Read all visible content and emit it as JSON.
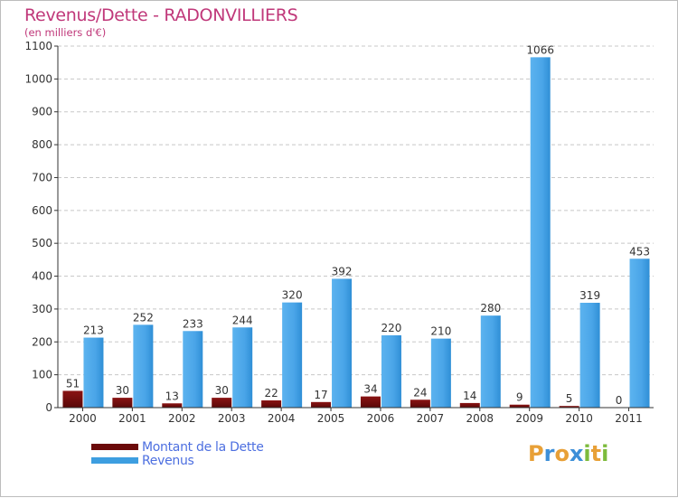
{
  "chart_data": {
    "type": "bar",
    "title": "Revenus/Dette - RADONVILLIERS",
    "subtitle": "(en milliers d'€)",
    "categories": [
      "2000",
      "2001",
      "2002",
      "2003",
      "2004",
      "2005",
      "2006",
      "2007",
      "2008",
      "2009",
      "2010",
      "2011"
    ],
    "series": [
      {
        "name": "Montant de la Dette",
        "color": "#6b0a0a",
        "values": [
          51,
          30,
          13,
          30,
          22,
          17,
          34,
          24,
          14,
          9,
          5,
          0
        ]
      },
      {
        "name": "Revenus",
        "color": "#3d9ee0",
        "values": [
          213,
          252,
          233,
          244,
          320,
          392,
          220,
          210,
          280,
          1066,
          319,
          453
        ]
      }
    ],
    "ylim": [
      0,
      1100
    ],
    "yticks": [
      0,
      100,
      200,
      300,
      400,
      500,
      600,
      700,
      800,
      900,
      1000,
      1100
    ],
    "grid": true,
    "legend_position": "bottom-left"
  },
  "legend": {
    "debt_label": "Montant de la Dette",
    "revenue_label": "Revenus"
  },
  "logo": {
    "letters": [
      "P",
      "r",
      "o",
      "x",
      "i",
      "t",
      "i"
    ],
    "colors": [
      "#e8a037",
      "#3d8fd8",
      "#e8a037",
      "#3d8fd8",
      "#7dbb3c",
      "#e8a037",
      "#7dbb3c"
    ]
  }
}
